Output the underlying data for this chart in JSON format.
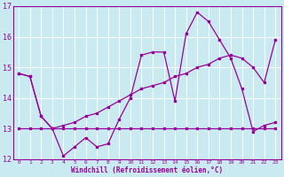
{
  "xlabel": "Windchill (Refroidissement éolien,°C)",
  "bg_color": "#c8eaf0",
  "line_color": "#990099",
  "grid_color": "#ffffff",
  "xlim": [
    -0.5,
    23.5
  ],
  "ylim": [
    12,
    17
  ],
  "yticks": [
    12,
    13,
    14,
    15,
    16,
    17
  ],
  "xticks": [
    0,
    1,
    2,
    3,
    4,
    5,
    6,
    7,
    8,
    9,
    10,
    11,
    12,
    13,
    14,
    15,
    16,
    17,
    18,
    19,
    20,
    21,
    22,
    23
  ],
  "line1_x": [
    0,
    1,
    2,
    3,
    4,
    5,
    6,
    7,
    8,
    9,
    10,
    11,
    12,
    13,
    14,
    15,
    16,
    17,
    18,
    19,
    20,
    21,
    22,
    23
  ],
  "line1_y": [
    14.8,
    14.7,
    13.4,
    13.0,
    12.1,
    12.4,
    12.7,
    12.4,
    12.5,
    13.3,
    14.0,
    15.4,
    15.5,
    15.5,
    13.9,
    16.1,
    16.8,
    16.5,
    15.9,
    15.3,
    14.3,
    12.9,
    13.1,
    13.2
  ],
  "line2_x": [
    0,
    1,
    2,
    3,
    4,
    5,
    6,
    7,
    8,
    9,
    10,
    11,
    12,
    13,
    14,
    15,
    16,
    17,
    18,
    19,
    20,
    21,
    22,
    23
  ],
  "line2_y": [
    14.8,
    14.7,
    13.4,
    13.0,
    13.1,
    13.2,
    13.4,
    13.5,
    13.7,
    13.9,
    14.1,
    14.3,
    14.4,
    14.5,
    14.7,
    14.8,
    15.0,
    15.1,
    15.3,
    15.4,
    15.3,
    15.0,
    14.5,
    15.9
  ],
  "line3_x": [
    0,
    1,
    2,
    3,
    4,
    5,
    6,
    7,
    8,
    9,
    10,
    11,
    12,
    13,
    14,
    15,
    16,
    17,
    18,
    19,
    20,
    21,
    22,
    23
  ],
  "line3_y": [
    13.0,
    13.0,
    13.0,
    13.0,
    13.0,
    13.0,
    13.0,
    13.0,
    13.0,
    13.0,
    13.0,
    13.0,
    13.0,
    13.0,
    13.0,
    13.0,
    13.0,
    13.0,
    13.0,
    13.0,
    13.0,
    13.0,
    13.0,
    13.0
  ]
}
